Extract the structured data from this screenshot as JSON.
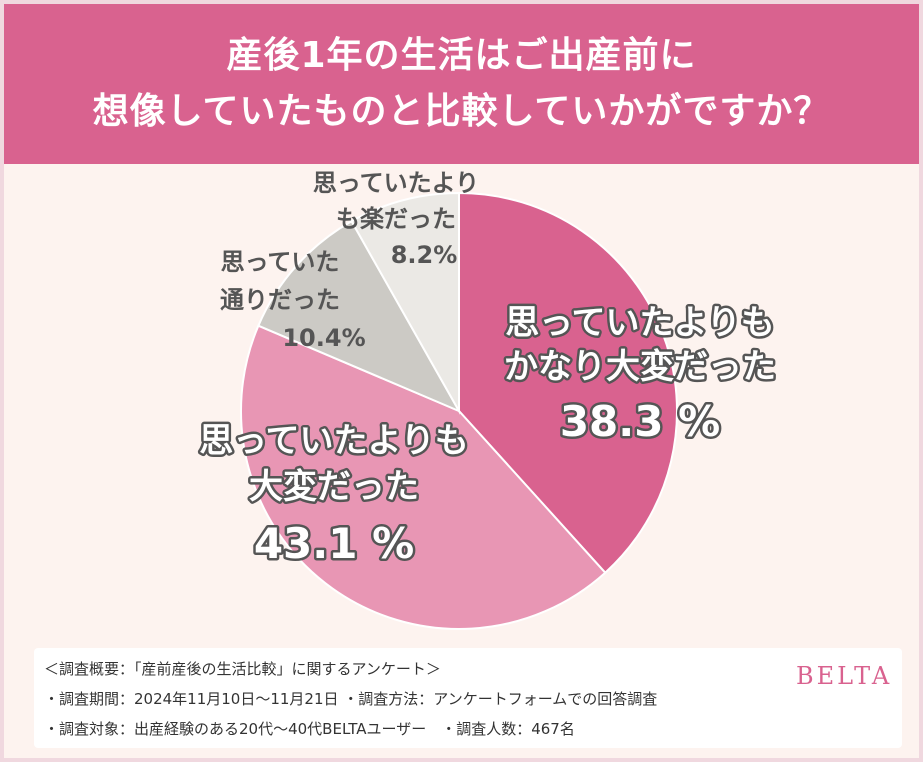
{
  "title": {
    "line1": "産後1年の生活はご出産前に",
    "line2": "想像していたものと比較していかがですか？"
  },
  "chart_data": {
    "type": "pie",
    "slices": [
      {
        "label_lines": [
          "思っていたよりも",
          "かなり大変だった"
        ],
        "value": 38.3,
        "value_label": "38.3 %",
        "color": "#d9628f"
      },
      {
        "label_lines": [
          "思っていたよりも",
          "大変だった"
        ],
        "value": 43.1,
        "value_label": "43.1 %",
        "color": "#e896b4"
      },
      {
        "label_lines": [
          "思っていた",
          "通りだった"
        ],
        "value": 10.4,
        "value_label": "10.4%",
        "color": "#cccac5"
      },
      {
        "label_lines": [
          "思っていたより",
          "も楽だった"
        ],
        "value": 8.2,
        "value_label": "8.2%",
        "color": "#ebe9e5"
      }
    ]
  },
  "notes": [
    "＜調査概要：「産前産後の生活比較」に関するアンケート＞",
    "・調査期間：2024年11月10日〜11月21日 ・調査方法：アンケートフォームでの回答調査",
    "・調査対象：出産経験のある20代〜40代BELTAユーザー　・調査人数：467名"
  ],
  "brand": "BELTA"
}
